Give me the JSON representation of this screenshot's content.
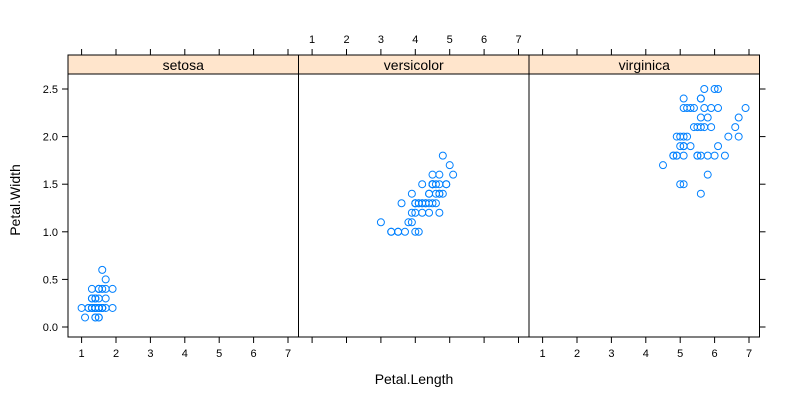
{
  "chart_data": {
    "type": "scatter",
    "xlabel": "Petal.Length",
    "ylabel": "Petal.Width",
    "xlim": [
      0.5,
      7.4
    ],
    "ylim": [
      -0.1,
      2.7
    ],
    "x_ticks": [
      1,
      2,
      3,
      4,
      5,
      6,
      7
    ],
    "y_ticks": [
      0.0,
      0.5,
      1.0,
      1.5,
      2.0,
      2.5
    ],
    "x_tick_labels": [
      "1",
      "2",
      "3",
      "4",
      "5",
      "6",
      "7"
    ],
    "y_tick_labels": [
      "0.0",
      "0.5",
      "1.0",
      "1.5",
      "2.0",
      "2.5"
    ],
    "point_color": "#0080ff",
    "strip_color": "#ffe5cc",
    "panels": [
      {
        "name": "setosa",
        "points": [
          [
            1.4,
            0.2
          ],
          [
            1.4,
            0.2
          ],
          [
            1.3,
            0.2
          ],
          [
            1.5,
            0.2
          ],
          [
            1.4,
            0.2
          ],
          [
            1.7,
            0.4
          ],
          [
            1.4,
            0.3
          ],
          [
            1.5,
            0.2
          ],
          [
            1.4,
            0.2
          ],
          [
            1.5,
            0.1
          ],
          [
            1.5,
            0.2
          ],
          [
            1.6,
            0.2
          ],
          [
            1.4,
            0.1
          ],
          [
            1.1,
            0.1
          ],
          [
            1.2,
            0.2
          ],
          [
            1.5,
            0.4
          ],
          [
            1.3,
            0.4
          ],
          [
            1.4,
            0.3
          ],
          [
            1.7,
            0.3
          ],
          [
            1.5,
            0.3
          ],
          [
            1.7,
            0.2
          ],
          [
            1.5,
            0.4
          ],
          [
            1.0,
            0.2
          ],
          [
            1.7,
            0.5
          ],
          [
            1.9,
            0.2
          ],
          [
            1.6,
            0.2
          ],
          [
            1.6,
            0.4
          ],
          [
            1.5,
            0.2
          ],
          [
            1.4,
            0.2
          ],
          [
            1.6,
            0.2
          ],
          [
            1.6,
            0.2
          ],
          [
            1.5,
            0.4
          ],
          [
            1.5,
            0.1
          ],
          [
            1.4,
            0.2
          ],
          [
            1.5,
            0.2
          ],
          [
            1.2,
            0.2
          ],
          [
            1.3,
            0.2
          ],
          [
            1.4,
            0.1
          ],
          [
            1.3,
            0.2
          ],
          [
            1.5,
            0.2
          ],
          [
            1.3,
            0.3
          ],
          [
            1.3,
            0.3
          ],
          [
            1.3,
            0.2
          ],
          [
            1.6,
            0.6
          ],
          [
            1.9,
            0.4
          ],
          [
            1.4,
            0.3
          ],
          [
            1.6,
            0.2
          ],
          [
            1.4,
            0.2
          ],
          [
            1.5,
            0.2
          ],
          [
            1.4,
            0.2
          ]
        ]
      },
      {
        "name": "versicolor",
        "points": [
          [
            4.7,
            1.4
          ],
          [
            4.5,
            1.5
          ],
          [
            4.9,
            1.5
          ],
          [
            4.0,
            1.3
          ],
          [
            4.6,
            1.5
          ],
          [
            4.5,
            1.3
          ],
          [
            4.7,
            1.6
          ],
          [
            3.3,
            1.0
          ],
          [
            4.6,
            1.3
          ],
          [
            3.9,
            1.4
          ],
          [
            3.5,
            1.0
          ],
          [
            4.2,
            1.5
          ],
          [
            4.0,
            1.0
          ],
          [
            4.7,
            1.4
          ],
          [
            3.6,
            1.3
          ],
          [
            4.4,
            1.4
          ],
          [
            4.5,
            1.5
          ],
          [
            4.1,
            1.0
          ],
          [
            4.5,
            1.5
          ],
          [
            3.9,
            1.1
          ],
          [
            4.8,
            1.8
          ],
          [
            4.0,
            1.3
          ],
          [
            4.9,
            1.5
          ],
          [
            4.7,
            1.2
          ],
          [
            4.3,
            1.3
          ],
          [
            4.4,
            1.4
          ],
          [
            4.8,
            1.4
          ],
          [
            5.0,
            1.7
          ],
          [
            4.5,
            1.5
          ],
          [
            3.5,
            1.0
          ],
          [
            3.8,
            1.1
          ],
          [
            3.7,
            1.0
          ],
          [
            3.9,
            1.2
          ],
          [
            5.1,
            1.6
          ],
          [
            4.5,
            1.5
          ],
          [
            4.5,
            1.6
          ],
          [
            4.7,
            1.5
          ],
          [
            4.4,
            1.3
          ],
          [
            4.1,
            1.3
          ],
          [
            4.0,
            1.3
          ],
          [
            4.4,
            1.2
          ],
          [
            4.6,
            1.4
          ],
          [
            4.0,
            1.2
          ],
          [
            3.3,
            1.0
          ],
          [
            4.2,
            1.3
          ],
          [
            4.2,
            1.2
          ],
          [
            4.2,
            1.3
          ],
          [
            4.3,
            1.3
          ],
          [
            3.0,
            1.1
          ],
          [
            4.1,
            1.3
          ]
        ]
      },
      {
        "name": "virginica",
        "points": [
          [
            6.0,
            2.5
          ],
          [
            5.1,
            1.9
          ],
          [
            5.9,
            2.1
          ],
          [
            5.6,
            1.8
          ],
          [
            5.8,
            2.2
          ],
          [
            6.6,
            2.1
          ],
          [
            4.5,
            1.7
          ],
          [
            6.3,
            1.8
          ],
          [
            5.8,
            1.8
          ],
          [
            6.1,
            2.5
          ],
          [
            5.1,
            2.0
          ],
          [
            5.3,
            1.9
          ],
          [
            5.5,
            2.1
          ],
          [
            5.0,
            2.0
          ],
          [
            5.1,
            2.4
          ],
          [
            5.3,
            2.3
          ],
          [
            5.5,
            1.8
          ],
          [
            6.7,
            2.2
          ],
          [
            6.9,
            2.3
          ],
          [
            5.0,
            1.5
          ],
          [
            5.7,
            2.3
          ],
          [
            4.9,
            2.0
          ],
          [
            6.7,
            2.0
          ],
          [
            4.9,
            1.8
          ],
          [
            5.7,
            2.1
          ],
          [
            6.0,
            1.8
          ],
          [
            4.8,
            1.8
          ],
          [
            4.9,
            1.8
          ],
          [
            5.6,
            2.1
          ],
          [
            5.8,
            1.6
          ],
          [
            6.1,
            1.9
          ],
          [
            6.4,
            2.0
          ],
          [
            5.6,
            2.2
          ],
          [
            5.1,
            1.5
          ],
          [
            5.6,
            1.4
          ],
          [
            6.1,
            2.3
          ],
          [
            5.6,
            2.4
          ],
          [
            5.5,
            1.8
          ],
          [
            4.8,
            1.8
          ],
          [
            5.4,
            2.1
          ],
          [
            5.6,
            2.4
          ],
          [
            5.1,
            2.3
          ],
          [
            5.1,
            1.9
          ],
          [
            5.9,
            2.3
          ],
          [
            5.7,
            2.5
          ],
          [
            5.2,
            2.3
          ],
          [
            5.0,
            1.9
          ],
          [
            5.2,
            2.0
          ],
          [
            5.4,
            2.3
          ],
          [
            5.1,
            1.8
          ]
        ]
      }
    ]
  }
}
